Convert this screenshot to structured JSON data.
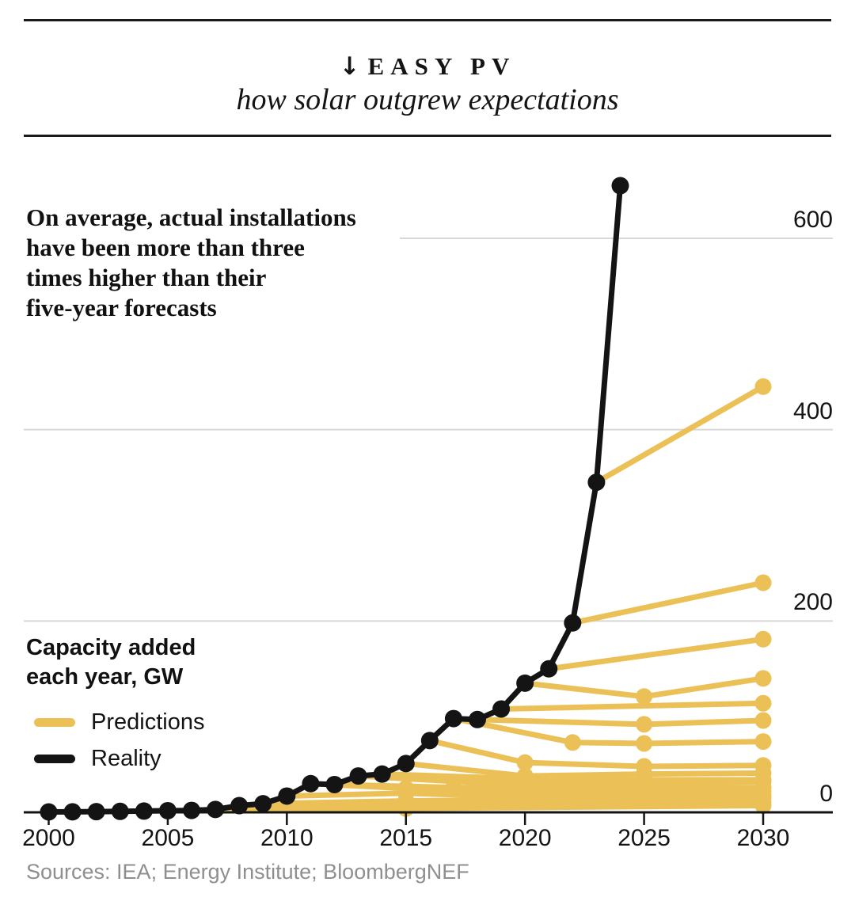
{
  "header": {
    "title_arrow": "↓",
    "title": "EASY PV",
    "subtitle": "how solar outgrew expectations"
  },
  "annotation": "On average, actual installations\nhave been more than three\ntimes higher than their\nfive-year forecasts",
  "legend": {
    "title": "Capacity added\neach year, GW",
    "items": [
      {
        "label": "Predictions",
        "color": "#EBC157"
      },
      {
        "label": "Reality",
        "color": "#141414"
      }
    ]
  },
  "sources": "Sources: IEA; Energy Institute; BloombergNEF",
  "colors": {
    "prediction": "#EBC157",
    "reality": "#141414",
    "gridline": "#d8d8d8",
    "axis": "#141414",
    "sources_text": "#8f8f8f"
  },
  "chart_data": {
    "type": "line",
    "title": "Capacity added each year, GW",
    "xlabel": "",
    "ylabel": "GW",
    "xlim": [
      2000,
      2030
    ],
    "ylim": [
      0,
      680
    ],
    "x_ticks": [
      2000,
      2005,
      2010,
      2015,
      2020,
      2025,
      2030
    ],
    "y_ticks": [
      0,
      200,
      400,
      600
    ],
    "grid": "horizontal",
    "y_label_position": "right",
    "series": [
      {
        "name": "Reality",
        "color": "#141414",
        "points": [
          [
            2000,
            0.4
          ],
          [
            2001,
            0.5
          ],
          [
            2002,
            0.7
          ],
          [
            2003,
            1.0
          ],
          [
            2004,
            1.3
          ],
          [
            2005,
            1.7
          ],
          [
            2006,
            2.0
          ],
          [
            2007,
            3.0
          ],
          [
            2008,
            7.0
          ],
          [
            2009,
            9.0
          ],
          [
            2010,
            17
          ],
          [
            2011,
            30
          ],
          [
            2012,
            29
          ],
          [
            2013,
            38
          ],
          [
            2014,
            40
          ],
          [
            2015,
            51
          ],
          [
            2016,
            75
          ],
          [
            2017,
            98
          ],
          [
            2018,
            97
          ],
          [
            2019,
            108
          ],
          [
            2020,
            135
          ],
          [
            2021,
            150
          ],
          [
            2022,
            198
          ],
          [
            2023,
            345
          ],
          [
            2024,
            655
          ]
        ]
      },
      {
        "name": "Predictions",
        "color": "#EBC157",
        "lines": [
          [
            [
              2006,
              1.6
            ],
            [
              2015,
              4
            ],
            [
              2030,
              7
            ]
          ],
          [
            [
              2007,
              2.5
            ],
            [
              2015,
              7
            ],
            [
              2030,
              11
            ]
          ],
          [
            [
              2009,
              9
            ],
            [
              2015,
              12
            ],
            [
              2020,
              13
            ],
            [
              2030,
              15
            ]
          ],
          [
            [
              2010,
              17
            ],
            [
              2015,
              20
            ],
            [
              2020,
              16
            ],
            [
              2030,
              18
            ]
          ],
          [
            [
              2011,
              30
            ],
            [
              2015,
              25
            ],
            [
              2020,
              21
            ],
            [
              2030,
              22
            ]
          ],
          [
            [
              2012,
              29
            ],
            [
              2017,
              26
            ],
            [
              2025,
              25
            ],
            [
              2030,
              26
            ]
          ],
          [
            [
              2013,
              38
            ],
            [
              2018,
              31
            ],
            [
              2025,
              30
            ],
            [
              2030,
              32
            ]
          ],
          [
            [
              2014,
              40
            ],
            [
              2020,
              35
            ],
            [
              2025,
              34
            ],
            [
              2030,
              34
            ]
          ],
          [
            [
              2015,
              51
            ],
            [
              2020,
              38
            ],
            [
              2025,
              40
            ],
            [
              2030,
              41
            ]
          ],
          [
            [
              2016,
              75
            ],
            [
              2020,
              52
            ],
            [
              2025,
              48
            ],
            [
              2030,
              49
            ]
          ],
          [
            [
              2017,
              98
            ],
            [
              2022,
              73
            ],
            [
              2025,
              72
            ],
            [
              2030,
              74
            ]
          ],
          [
            [
              2018,
              97
            ],
            [
              2025,
              92
            ],
            [
              2030,
              96
            ]
          ],
          [
            [
              2019,
              108
            ],
            [
              2030,
              114
            ]
          ],
          [
            [
              2020,
              135
            ],
            [
              2025,
              121
            ],
            [
              2030,
              140
            ]
          ],
          [
            [
              2021,
              150
            ],
            [
              2030,
              181
            ]
          ],
          [
            [
              2022,
              198
            ],
            [
              2030,
              240
            ]
          ],
          [
            [
              2023,
              345
            ],
            [
              2030,
              445
            ]
          ]
        ]
      }
    ]
  }
}
